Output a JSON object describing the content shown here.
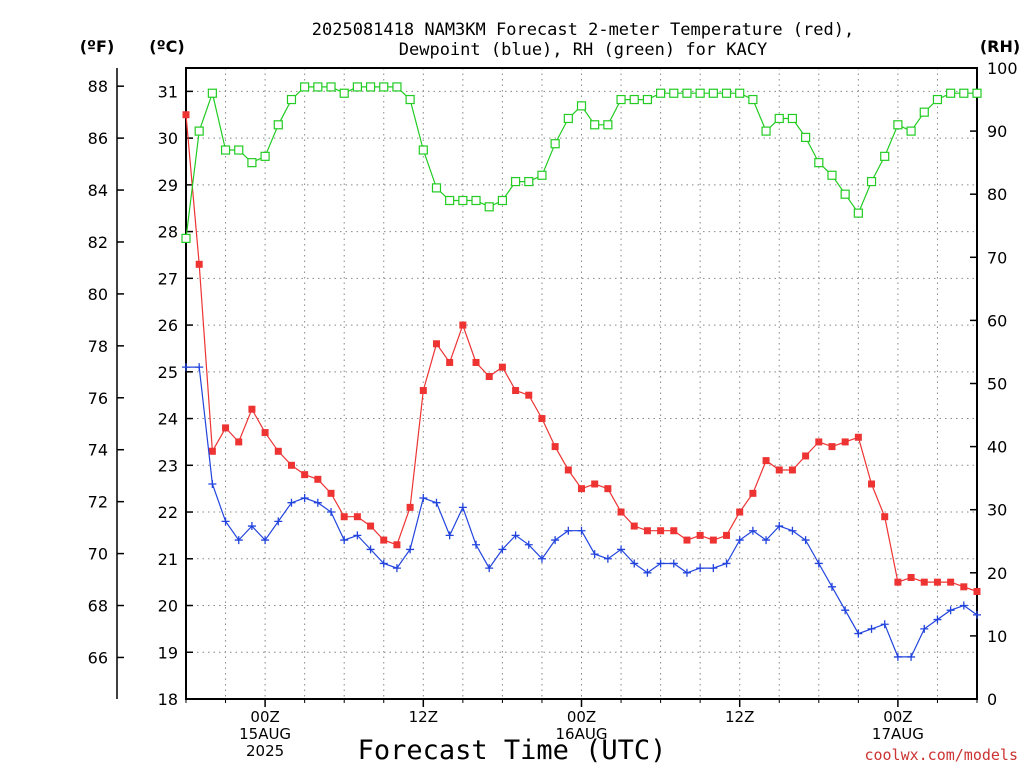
{
  "title": {
    "line1": "2025081418 NAM3KM Forecast 2-meter Temperature (red),",
    "line2": "Dewpoint (blue), RH (green) for KACY"
  },
  "axis_units": {
    "left_f": "(ºF)",
    "left_c": "(ºC)",
    "right_rh": "(RH)"
  },
  "xlabel": "Forecast Time (UTC)",
  "watermark": "coolwx.com/models",
  "colors": {
    "temperature": "#ee3333",
    "dewpoint": "#2244dd",
    "rh": "#22cc22",
    "grid": "#888888",
    "watermark": "#cc3333"
  },
  "chart_data": {
    "type": "line",
    "title": "2025081418 NAM3KM Forecast 2-meter Temperature (red), Dewpoint (blue), RH (green) for KACY",
    "xlabel": "Forecast Time (UTC)",
    "x_units": "forecast hour from 2025-08-14 18Z",
    "xlim": [
      0,
      60
    ],
    "x_ticks": [
      {
        "hour": 6,
        "lines": [
          "00Z",
          "15AUG",
          "2025"
        ]
      },
      {
        "hour": 18,
        "lines": [
          "12Z"
        ]
      },
      {
        "hour": 30,
        "lines": [
          "00Z",
          "16AUG"
        ]
      },
      {
        "hour": 42,
        "lines": [
          "12Z"
        ]
      },
      {
        "hour": 54,
        "lines": [
          "00Z",
          "17AUG"
        ]
      }
    ],
    "x_minor_hours": [
      0,
      3,
      9,
      12,
      15,
      21,
      24,
      27,
      33,
      36,
      39,
      45,
      48,
      51,
      57,
      60
    ],
    "axes": {
      "left_f": {
        "label": "(ºF)",
        "range": [
          64.4,
          88.7
        ],
        "ticks": [
          66,
          68,
          70,
          72,
          74,
          76,
          78,
          80,
          82,
          84,
          86,
          88
        ]
      },
      "left_c": {
        "label": "(ºC)",
        "range": [
          18,
          31.5
        ],
        "ticks": [
          18,
          19,
          20,
          21,
          22,
          23,
          24,
          25,
          26,
          27,
          28,
          29,
          30,
          31
        ]
      },
      "right_rh": {
        "label": "(RH)",
        "range": [
          0,
          100
        ],
        "ticks": [
          0,
          10,
          20,
          30,
          40,
          50,
          60,
          70,
          80,
          90,
          100
        ]
      }
    },
    "grid": true,
    "series": [
      {
        "name": "Temperature",
        "units": "ºC",
        "axis": "left_c",
        "color": "#ee3333",
        "marker": "filled-square",
        "x": [
          0,
          1,
          2,
          3,
          4,
          5,
          6,
          7,
          8,
          9,
          10,
          11,
          12,
          13,
          14,
          15,
          16,
          17,
          18,
          19,
          20,
          21,
          22,
          23,
          24,
          25,
          26,
          27,
          28,
          29,
          30,
          31,
          32,
          33,
          34,
          35,
          36,
          37,
          38,
          39,
          40,
          41,
          42,
          43,
          44,
          45,
          46,
          47,
          48,
          49,
          50,
          51,
          52,
          53,
          54,
          55,
          56,
          57,
          58,
          59,
          60
        ],
        "y": [
          30.5,
          27.3,
          23.3,
          23.8,
          23.5,
          24.2,
          23.7,
          23.3,
          23.0,
          22.8,
          22.7,
          22.4,
          21.9,
          21.9,
          21.7,
          21.4,
          21.3,
          22.1,
          24.6,
          25.6,
          25.2,
          26.0,
          25.2,
          24.9,
          25.1,
          24.6,
          24.5,
          24.0,
          23.4,
          22.9,
          22.5,
          22.6,
          22.5,
          22.0,
          21.7,
          21.6,
          21.6,
          21.6,
          21.4,
          21.5,
          21.4,
          21.5,
          22.0,
          22.4,
          23.1,
          22.9,
          22.9,
          23.2,
          23.5,
          23.4,
          23.5,
          23.6,
          22.6,
          21.9,
          20.5,
          20.6,
          20.5,
          20.5,
          20.5,
          20.4,
          20.3
        ]
      },
      {
        "name": "Dewpoint",
        "units": "ºC",
        "axis": "left_c",
        "color": "#2244dd",
        "marker": "plus",
        "x": [
          0,
          1,
          2,
          3,
          4,
          5,
          6,
          7,
          8,
          9,
          10,
          11,
          12,
          13,
          14,
          15,
          16,
          17,
          18,
          19,
          20,
          21,
          22,
          23,
          24,
          25,
          26,
          27,
          28,
          29,
          30,
          31,
          32,
          33,
          34,
          35,
          36,
          37,
          38,
          39,
          40,
          41,
          42,
          43,
          44,
          45,
          46,
          47,
          48,
          49,
          50,
          51,
          52,
          53,
          54,
          55,
          56,
          57,
          58,
          59,
          60
        ],
        "y": [
          25.1,
          25.1,
          22.6,
          21.8,
          21.4,
          21.7,
          21.4,
          21.8,
          22.2,
          22.3,
          22.2,
          22.0,
          21.4,
          21.5,
          21.2,
          20.9,
          20.8,
          21.2,
          22.3,
          22.2,
          21.5,
          22.1,
          21.3,
          20.8,
          21.2,
          21.5,
          21.3,
          21.0,
          21.4,
          21.6,
          21.6,
          21.1,
          21.0,
          21.2,
          20.9,
          20.7,
          20.9,
          20.9,
          20.7,
          20.8,
          20.8,
          20.9,
          21.4,
          21.6,
          21.4,
          21.7,
          21.6,
          21.4,
          20.9,
          20.4,
          19.9,
          19.4,
          19.5,
          19.6,
          18.9,
          18.9,
          19.5,
          19.7,
          19.9,
          20.0,
          19.8
        ]
      },
      {
        "name": "RH",
        "units": "%",
        "axis": "right_rh",
        "color": "#22cc22",
        "marker": "open-square",
        "x": [
          0,
          1,
          2,
          3,
          4,
          5,
          6,
          7,
          8,
          9,
          10,
          11,
          12,
          13,
          14,
          15,
          16,
          17,
          18,
          19,
          20,
          21,
          22,
          23,
          24,
          25,
          26,
          27,
          28,
          29,
          30,
          31,
          32,
          33,
          34,
          35,
          36,
          37,
          38,
          39,
          40,
          41,
          42,
          43,
          44,
          45,
          46,
          47,
          48,
          49,
          50,
          51,
          52,
          53,
          54,
          55,
          56,
          57,
          58,
          59,
          60
        ],
        "y": [
          73,
          90,
          96,
          87,
          87,
          85,
          86,
          91,
          95,
          97,
          97,
          97,
          96,
          97,
          97,
          97,
          97,
          95,
          87,
          81,
          79,
          79,
          79,
          78,
          79,
          82,
          82,
          83,
          88,
          92,
          94,
          91,
          91,
          95,
          95,
          95,
          96,
          96,
          96,
          96,
          96,
          96,
          96,
          95,
          90,
          92,
          92,
          89,
          85,
          83,
          80,
          77,
          82,
          86,
          91,
          90,
          93,
          95,
          96,
          96,
          96
        ]
      }
    ]
  }
}
